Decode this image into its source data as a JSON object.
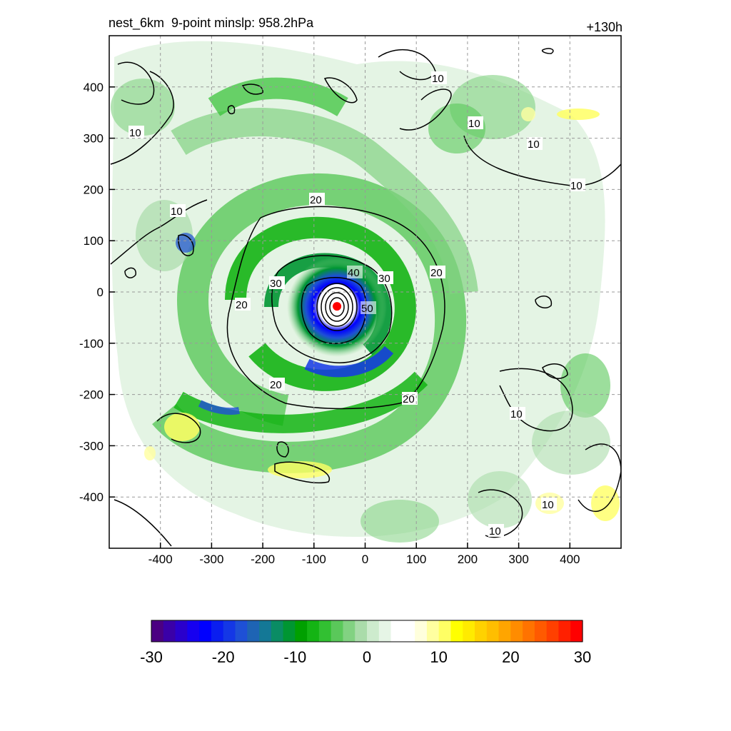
{
  "title": {
    "left": "nest_6km  9-point minslp: 958.2hPa",
    "right": "+130h"
  },
  "axes": {
    "x_ticks": [
      "-400",
      "-300",
      "-200",
      "-100",
      "0",
      "100",
      "200",
      "300",
      "400"
    ],
    "y_ticks": [
      "400",
      "300",
      "200",
      "100",
      "0",
      "-100",
      "-200",
      "-300",
      "-400"
    ],
    "xlim": [
      -500,
      500
    ],
    "ylim": [
      -500,
      500
    ],
    "grid": true
  },
  "contour_labels": [
    "10",
    "10",
    "10",
    "10",
    "10",
    "10",
    "10",
    "10",
    "10",
    "20",
    "20",
    "20",
    "20",
    "20",
    "30",
    "30",
    "40",
    "50"
  ],
  "center_marker": {
    "x": -55,
    "y": -28,
    "color": "#ff0000"
  },
  "colorbar": {
    "tick_labels": [
      "-30",
      "-20",
      "-10",
      "0",
      "10",
      "20",
      "30"
    ],
    "min": -30,
    "max": 30,
    "colors": [
      "#4b0082",
      "#3a00a8",
      "#2a00cc",
      "#1600f0",
      "#0000ff",
      "#0a1ef0",
      "#1437e6",
      "#1e50d6",
      "#1e64b4",
      "#147896",
      "#0a8c64",
      "#009632",
      "#00a000",
      "#14b414",
      "#32c032",
      "#5ac85a",
      "#82d282",
      "#aadcaa",
      "#cdebcd",
      "#e6f5e6",
      "#ffffff",
      "#ffffff",
      "#ffffdc",
      "#ffffa0",
      "#ffff64",
      "#ffff00",
      "#ffeb00",
      "#ffd200",
      "#ffbe00",
      "#ffa500",
      "#ff8c00",
      "#ff7300",
      "#ff5a00",
      "#ff4000",
      "#ff2000",
      "#ff0000"
    ]
  }
}
